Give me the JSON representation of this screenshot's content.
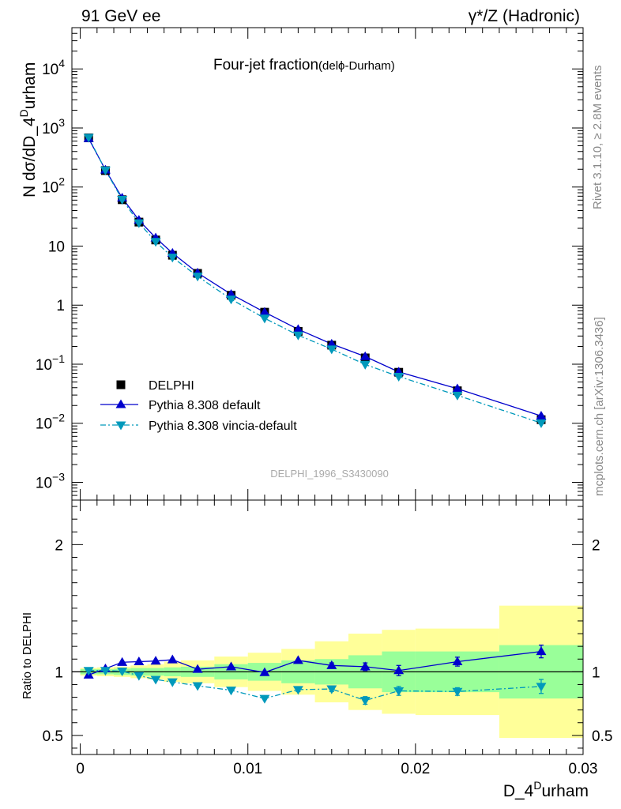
{
  "header": {
    "left": "91 GeV ee",
    "right": "γ*/Z (Hadronic)"
  },
  "side_labels": {
    "rivet": "Rivet 3.1.10, ≥ 2.8M events",
    "mcplots": "mcplots.cern.ch [arXiv:1306.3436]"
  },
  "chart_data": [
    {
      "type": "line",
      "panel": "main",
      "title": "Four-jet fraction",
      "title_suffix": "(delϕ-Durham)",
      "watermark": "DELPHI_1996_S3430090",
      "ylabel_main": "N dσ/dD_4",
      "ylabel_sup": "D",
      "ylabel_tail": "urham",
      "yscale": "log",
      "ylim": [
        0.0005,
        50000
      ],
      "xlim": [
        -0.0005,
        0.03
      ],
      "ytick_labels": [
        {
          "value": 0.001,
          "base": "10",
          "exp": "−3"
        },
        {
          "value": 0.01,
          "base": "10",
          "exp": "−2"
        },
        {
          "value": 0.1,
          "base": "10",
          "exp": "−1"
        },
        {
          "value": 1,
          "base": "1",
          "exp": ""
        },
        {
          "value": 10,
          "base": "10",
          "exp": ""
        },
        {
          "value": 100,
          "base": "10",
          "exp": "2"
        },
        {
          "value": 1000,
          "base": "10",
          "exp": "3"
        },
        {
          "value": 10000,
          "base": "10",
          "exp": "4"
        }
      ],
      "legend_position": "lower-left",
      "x": [
        0.0005,
        0.0015,
        0.0025,
        0.0035,
        0.0045,
        0.0055,
        0.007,
        0.009,
        0.011,
        0.013,
        0.015,
        0.017,
        0.019,
        0.0225,
        0.0275
      ],
      "series": [
        {
          "name": "DELPHI",
          "style": "data",
          "color": "#000000",
          "values": [
            680,
            190,
            61,
            25.5,
            12.7,
            7.0,
            3.45,
            1.47,
            0.76,
            0.36,
            0.21,
            0.128,
            0.073,
            0.0355,
            0.0115
          ]
        },
        {
          "name": "Pythia 8.308 default",
          "style": "solid",
          "marker": "triangle-up",
          "color": "#0000cc",
          "values": [
            663,
            195,
            65.5,
            27.5,
            13.8,
            7.6,
            3.52,
            1.53,
            0.76,
            0.39,
            0.22,
            0.135,
            0.074,
            0.0385,
            0.0133
          ]
        },
        {
          "name": "Pythia 8.308 vincia-default",
          "style": "dashdot",
          "marker": "triangle-down",
          "color": "#0099bb",
          "values": [
            690,
            193,
            61.5,
            24.7,
            11.9,
            6.45,
            3.08,
            1.26,
            0.6,
            0.31,
            0.18,
            0.099,
            0.062,
            0.0297,
            0.0101
          ]
        }
      ]
    },
    {
      "type": "line",
      "panel": "ratio",
      "ylabel": "Ratio to DELPHI",
      "xlabel_main": "D_4",
      "xlabel_sup": "D",
      "xlabel_tail": "urham",
      "ylim": [
        0.35,
        2.35
      ],
      "xlim": [
        -0.0005,
        0.03
      ],
      "yticks": [
        0.5,
        1,
        2
      ],
      "ytick_labels": [
        "0.5",
        "1",
        "2"
      ],
      "xticks": [
        0,
        0.01,
        0.02,
        0.03
      ],
      "xtick_labels": [
        "0",
        "0.01",
        "0.02",
        "0.03"
      ],
      "bins": [
        [
          0,
          0.001
        ],
        [
          0.001,
          0.002
        ],
        [
          0.002,
          0.003
        ],
        [
          0.003,
          0.004
        ],
        [
          0.004,
          0.005
        ],
        [
          0.005,
          0.006
        ],
        [
          0.006,
          0.008
        ],
        [
          0.008,
          0.01
        ],
        [
          0.01,
          0.012
        ],
        [
          0.012,
          0.014
        ],
        [
          0.014,
          0.016
        ],
        [
          0.016,
          0.018
        ],
        [
          0.018,
          0.02
        ],
        [
          0.02,
          0.025
        ],
        [
          0.025,
          0.03
        ]
      ],
      "band_stat": [
        0.02,
        0.02,
        0.025,
        0.03,
        0.03,
        0.035,
        0.04,
        0.06,
        0.07,
        0.09,
        0.1,
        0.13,
        0.16,
        0.16,
        0.21
      ],
      "band_total": [
        0.03,
        0.035,
        0.04,
        0.05,
        0.06,
        0.08,
        0.09,
        0.12,
        0.15,
        0.18,
        0.24,
        0.3,
        0.33,
        0.34,
        0.52
      ],
      "band_colors": {
        "total": "#ffff99",
        "stat": "#99ff99"
      },
      "x": [
        0.0005,
        0.0015,
        0.0025,
        0.0035,
        0.0045,
        0.0055,
        0.007,
        0.009,
        0.011,
        0.013,
        0.015,
        0.017,
        0.019,
        0.0225,
        0.0275
      ],
      "series": [
        {
          "name": "Pythia 8.308 default",
          "style": "solid",
          "marker": "triangle-up",
          "color": "#0000cc",
          "values": [
            0.975,
            1.025,
            1.075,
            1.08,
            1.085,
            1.095,
            1.02,
            1.04,
            0.995,
            1.09,
            1.05,
            1.04,
            1.01,
            1.08,
            1.16
          ],
          "errors": [
            0,
            0,
            0,
            0,
            0,
            0,
            0,
            0,
            0,
            0,
            0.02,
            0.03,
            0.04,
            0.035,
            0.05
          ]
        },
        {
          "name": "Pythia 8.308 vincia-default",
          "style": "dashdot",
          "marker": "triangle-down",
          "color": "#0099bb",
          "values": [
            1.01,
            1.01,
            1.005,
            0.97,
            0.94,
            0.92,
            0.89,
            0.855,
            0.79,
            0.86,
            0.865,
            0.775,
            0.85,
            0.845,
            0.885
          ],
          "errors": [
            0,
            0,
            0,
            0,
            0,
            0,
            0,
            0,
            0,
            0.015,
            0.02,
            0.03,
            0.035,
            0.03,
            0.055
          ]
        }
      ]
    }
  ]
}
